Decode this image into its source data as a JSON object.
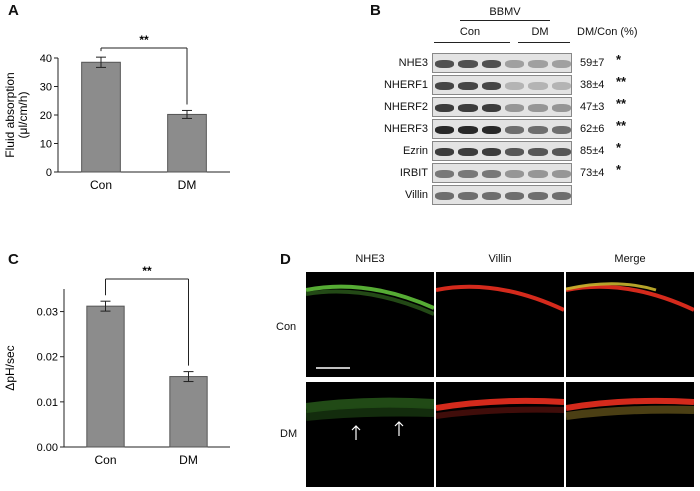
{
  "panels": {
    "A": {
      "letter": "A",
      "chart_data": {
        "type": "bar",
        "categories": [
          "Con",
          "DM"
        ],
        "values": [
          38.5,
          20.2
        ],
        "errors": [
          1.8,
          1.4
        ],
        "ylabel_line1": "Fluid absorption",
        "ylabel_line2": "(μl/cm/h)",
        "ylim": [
          0,
          40
        ],
        "yticks": [
          0,
          10,
          20,
          30,
          40
        ],
        "significance": "**",
        "bar_color": "#8c8c8c"
      }
    },
    "B": {
      "letter": "B",
      "group_title": "BBMV",
      "group_con": "Con",
      "group_dm": "DM",
      "ratio_header": "DM/Con (%)",
      "rows": [
        {
          "label": "NHE3",
          "value": "59±7",
          "sig": "*",
          "con_int": 0.75,
          "dm_int": 0.35
        },
        {
          "label": "NHERF1",
          "value": "38±4",
          "sig": "**",
          "con_int": 0.8,
          "dm_int": 0.25
        },
        {
          "label": "NHERF2",
          "value": "47±3",
          "sig": "**",
          "con_int": 0.85,
          "dm_int": 0.4
        },
        {
          "label": "NHERF3",
          "value": "62±6",
          "sig": "**",
          "con_int": 0.95,
          "dm_int": 0.6
        },
        {
          "label": "Ezrin",
          "value": "85±4",
          "sig": "*",
          "con_int": 0.85,
          "dm_int": 0.72
        },
        {
          "label": "IRBIT",
          "value": "73±4",
          "sig": "*",
          "con_int": 0.55,
          "dm_int": 0.4
        },
        {
          "label": "Villin",
          "value": "",
          "sig": "",
          "con_int": 0.6,
          "dm_int": 0.6
        }
      ]
    },
    "C": {
      "letter": "C",
      "chart_data": {
        "type": "bar",
        "categories": [
          "Con",
          "DM"
        ],
        "values": [
          0.0312,
          0.0156
        ],
        "errors": [
          0.0011,
          0.0011
        ],
        "ylabel": "ΔpH/sec",
        "ylim": [
          0,
          0.035
        ],
        "yticks": [
          "0.00",
          "0.01",
          "0.02",
          "0.03"
        ],
        "ytick_values": [
          0,
          0.01,
          0.02,
          0.03
        ],
        "significance": "**",
        "bar_color": "#8c8c8c"
      }
    },
    "D": {
      "letter": "D",
      "columns": [
        "NHE3",
        "Villin",
        "Merge"
      ],
      "rows": [
        "Con",
        "DM"
      ],
      "colors": {
        "green": "#5fbf3a",
        "red": "#d42a1c",
        "yellow": "#c9b52e"
      }
    }
  }
}
